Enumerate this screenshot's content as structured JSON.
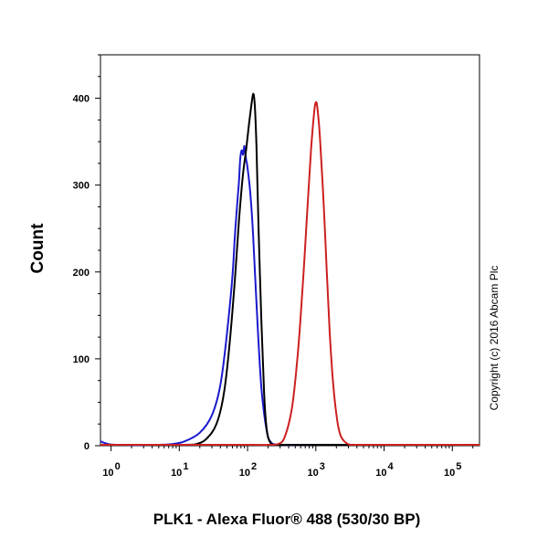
{
  "chart_data": {
    "type": "line",
    "title": "",
    "xlabel": "PLK1 - Alexa Fluor® 488 (530/30 BP)",
    "ylabel": "Count",
    "xscale": "log",
    "xlim": [
      0.7,
      250000
    ],
    "ylim": [
      0,
      450
    ],
    "yticks": [
      0,
      100,
      200,
      300,
      400
    ],
    "ytick_labels": [
      "0",
      "100",
      "200",
      "300",
      "400"
    ],
    "xticks": [
      1,
      10,
      100,
      1000,
      10000,
      100000
    ],
    "xtick_bases": [
      "10",
      "10",
      "10",
      "10",
      "10",
      "10"
    ],
    "xtick_exps": [
      "0",
      "1",
      "2",
      "3",
      "4",
      "5"
    ],
    "grid": false,
    "legend": "none",
    "series": [
      {
        "color": "#1a1acc",
        "x": [
          0.7,
          0.9,
          1.2,
          5,
          8,
          12,
          20,
          30,
          40,
          50,
          60,
          65,
          70,
          75,
          78,
          82,
          86,
          90,
          95,
          100,
          110,
          120,
          140,
          160,
          190,
          220,
          300,
          1000,
          10000,
          250000
        ],
        "y": [
          5,
          2,
          0,
          0,
          2,
          5,
          15,
          35,
          70,
          130,
          195,
          240,
          275,
          305,
          330,
          340,
          335,
          345,
          330,
          320,
          290,
          245,
          140,
          65,
          18,
          4,
          0,
          0,
          0,
          0
        ]
      },
      {
        "color": "#000000",
        "x": [
          0.7,
          5,
          12,
          18,
          25,
          35,
          45,
          55,
          65,
          75,
          85,
          95,
          105,
          115,
          122,
          128,
          135,
          145,
          160,
          175,
          190,
          210,
          250,
          400,
          1000,
          10000,
          250000
        ],
        "y": [
          0,
          0,
          0,
          2,
          8,
          25,
          60,
          120,
          190,
          260,
          310,
          340,
          370,
          395,
          405,
          390,
          345,
          250,
          140,
          60,
          20,
          5,
          0,
          0,
          0,
          0,
          0
        ]
      },
      {
        "color": "#cc2020",
        "x": [
          0.7,
          100,
          200,
          280,
          350,
          450,
          550,
          650,
          750,
          850,
          950,
          1000,
          1050,
          1150,
          1300,
          1450,
          1600,
          1800,
          2050,
          2300,
          2700,
          3200,
          4000,
          10000,
          250000
        ],
        "y": [
          0,
          0,
          0,
          2,
          10,
          45,
          110,
          190,
          270,
          340,
          385,
          395,
          390,
          355,
          280,
          200,
          130,
          70,
          30,
          12,
          4,
          1,
          0,
          0,
          0
        ]
      }
    ]
  },
  "copyright": "Copyright (c) 2016 Abcam Plc"
}
